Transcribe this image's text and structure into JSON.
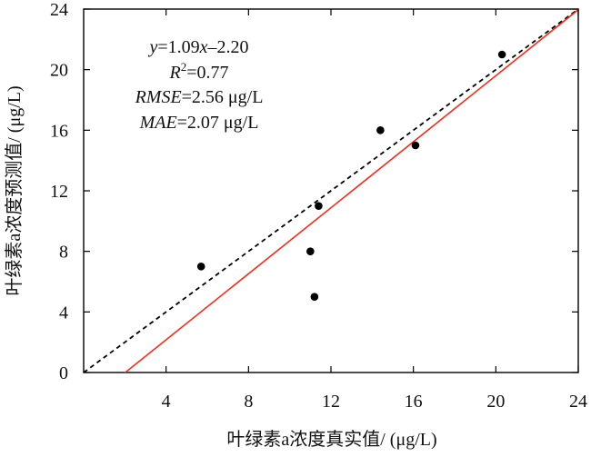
{
  "chart_data": {
    "type": "scatter",
    "xlabel": "叶绿素a浓度真实值/ (μg/L)",
    "ylabel": "叶绿素a浓度预测值/ (μg/L)",
    "xlim": [
      0,
      24
    ],
    "ylim": [
      0,
      24
    ],
    "x_ticks": [
      4,
      8,
      12,
      16,
      20,
      24
    ],
    "y_ticks": [
      0,
      4,
      8,
      12,
      16,
      20,
      24
    ],
    "grid": false,
    "points": [
      {
        "x": 5.7,
        "y": 7
      },
      {
        "x": 11.0,
        "y": 8
      },
      {
        "x": 11.2,
        "y": 5
      },
      {
        "x": 11.4,
        "y": 11
      },
      {
        "x": 14.4,
        "y": 16
      },
      {
        "x": 16.1,
        "y": 15
      },
      {
        "x": 20.3,
        "y": 21
      }
    ],
    "reference_line": {
      "style": "dashed",
      "color": "#000000",
      "slope": 1,
      "intercept": 0
    },
    "fit_line": {
      "style": "solid",
      "color": "#e8321e",
      "slope": 1.09,
      "intercept": -2.2
    },
    "annotations": {
      "equation": {
        "y": "y",
        "eq1": "=1.09",
        "x": "x",
        "eq2": "–2.20"
      },
      "r2": {
        "r": "R",
        "sup": "2",
        "rest": "=0.77"
      },
      "rmse": {
        "name": "RMSE",
        "rest": "=2.56 μg/L"
      },
      "mae": {
        "name": "MAE",
        "rest": "=2.07 μg/L"
      }
    }
  }
}
